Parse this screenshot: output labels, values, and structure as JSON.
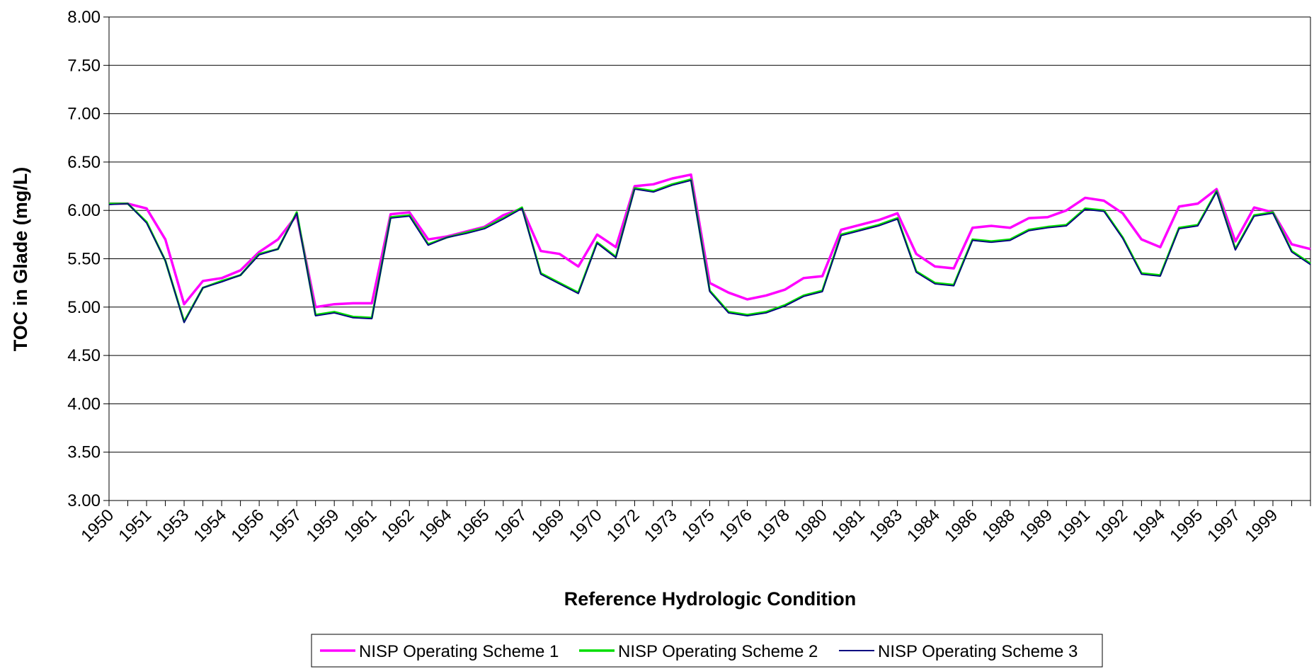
{
  "chart_data": {
    "type": "line",
    "x_title": "Reference Hydrologic Condition",
    "y_title": "TOC in Glade (mg/L)",
    "categories": [
      "1950",
      null,
      "1951",
      null,
      "1953",
      null,
      "1954",
      null,
      "1956",
      null,
      "1957",
      null,
      "1959",
      null,
      "1961",
      null,
      "1962",
      null,
      "1964",
      null,
      "1965",
      null,
      "1967",
      null,
      "1969",
      null,
      "1970",
      null,
      "1972",
      null,
      "1973",
      null,
      "1975",
      null,
      "1976",
      null,
      "1978",
      null,
      "1980",
      null,
      "1981",
      null,
      "1983",
      null,
      "1984",
      null,
      "1986",
      null,
      "1988",
      null,
      "1989",
      null,
      "1991",
      null,
      "1992",
      null,
      "1994",
      null,
      "1995",
      null,
      "1997",
      null,
      "1999",
      null,
      null
    ],
    "series": [
      {
        "name": "NISP Operating Scheme 1",
        "color": "#ff00ff",
        "values": [
          6.07,
          6.07,
          6.02,
          5.7,
          5.03,
          5.27,
          5.3,
          5.38,
          5.57,
          5.7,
          5.95,
          5.0,
          5.03,
          5.04,
          5.04,
          5.96,
          5.98,
          5.7,
          5.73,
          5.78,
          5.83,
          5.95,
          6.02,
          5.58,
          5.55,
          5.42,
          5.75,
          5.62,
          6.25,
          6.27,
          6.33,
          6.37,
          5.25,
          5.15,
          5.08,
          5.12,
          5.18,
          5.3,
          5.32,
          5.8,
          5.85,
          5.9,
          5.97,
          5.55,
          5.42,
          5.4,
          5.82,
          5.84,
          5.82,
          5.92,
          5.93,
          6.0,
          6.13,
          6.1,
          5.97,
          5.7,
          5.62,
          6.04,
          6.07,
          6.22,
          5.68,
          6.03,
          5.98,
          5.65,
          5.6
        ]
      },
      {
        "name": "NISP Operating Scheme 2",
        "color": "#00dd00",
        "values": [
          6.07,
          6.07,
          5.88,
          5.48,
          4.85,
          5.2,
          5.27,
          5.33,
          5.55,
          5.6,
          5.98,
          4.92,
          4.95,
          4.9,
          4.89,
          5.93,
          5.95,
          5.65,
          5.72,
          5.77,
          5.82,
          5.92,
          6.03,
          5.35,
          5.25,
          5.15,
          5.67,
          5.52,
          6.23,
          6.2,
          6.27,
          6.32,
          5.17,
          4.95,
          4.92,
          4.95,
          5.02,
          5.12,
          5.17,
          5.75,
          5.8,
          5.85,
          5.92,
          5.37,
          5.25,
          5.23,
          5.7,
          5.68,
          5.7,
          5.8,
          5.83,
          5.85,
          6.02,
          6.0,
          5.72,
          5.35,
          5.33,
          5.82,
          5.85,
          6.2,
          5.6,
          5.95,
          5.98,
          5.58,
          5.45
        ]
      },
      {
        "name": "NISP Operating Scheme 3",
        "color": "#000080",
        "values": [
          6.06,
          6.07,
          5.87,
          5.48,
          4.84,
          5.2,
          5.26,
          5.33,
          5.54,
          5.6,
          5.97,
          4.91,
          4.94,
          4.89,
          4.88,
          5.92,
          5.94,
          5.64,
          5.72,
          5.76,
          5.81,
          5.91,
          6.02,
          5.34,
          5.24,
          5.14,
          5.66,
          5.51,
          6.22,
          6.19,
          6.26,
          6.31,
          5.16,
          4.94,
          4.91,
          4.94,
          5.01,
          5.11,
          5.16,
          5.74,
          5.79,
          5.84,
          5.91,
          5.36,
          5.24,
          5.22,
          5.69,
          5.67,
          5.69,
          5.79,
          5.82,
          5.84,
          6.01,
          5.99,
          5.71,
          5.34,
          5.32,
          5.81,
          5.84,
          6.19,
          5.59,
          5.94,
          5.97,
          5.57,
          5.44
        ]
      }
    ],
    "ylim": [
      3,
      8
    ],
    "yticks": [
      {
        "value": 3,
        "label": "3.00"
      },
      {
        "value": 3.5,
        "label": "3.50"
      },
      {
        "value": 4,
        "label": "4.00"
      },
      {
        "value": 4.5,
        "label": "4.50"
      },
      {
        "value": 5,
        "label": "5.00"
      },
      {
        "value": 5.5,
        "label": "5.50"
      },
      {
        "value": 6,
        "label": "6.00"
      },
      {
        "value": 6.5,
        "label": "6.50"
      },
      {
        "value": 7,
        "label": "7.00"
      },
      {
        "value": 7.5,
        "label": "7.50"
      },
      {
        "value": 8,
        "label": "8.00"
      }
    ],
    "grid": true,
    "legend": "bottom"
  }
}
